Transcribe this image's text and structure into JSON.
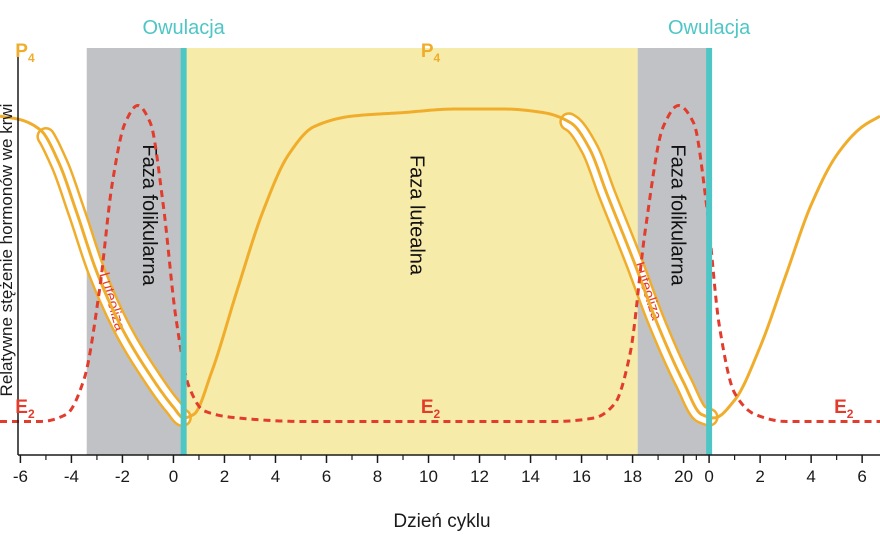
{
  "chart_data": {
    "type": "line",
    "xlabel": "Dzień cyklu",
    "ylabel": "Relatywne stężenie hormonów we krwi",
    "x_ticks": [
      "-6",
      "-4",
      "-2",
      "0",
      "2",
      "4",
      "6",
      "8",
      "10",
      "12",
      "14",
      "16",
      "18",
      "20",
      "0",
      "2",
      "4",
      "6"
    ],
    "x_tick_positions": [
      -6,
      -4,
      -2,
      0,
      2,
      4,
      6,
      8,
      10,
      12,
      14,
      16,
      18,
      20,
      21,
      23,
      25,
      27
    ],
    "xlim": [
      -6.8,
      27.7
    ],
    "ylim": [
      0,
      1
    ],
    "ovulation_label": "Owulacja",
    "ovulation_x": [
      0.4,
      21.0
    ],
    "regions": [
      {
        "label": "Faza folikularna",
        "from": -3.4,
        "to": 0.4,
        "color": "#c1c2c6"
      },
      {
        "label": "Faza lutealna",
        "from": 0.4,
        "to": 18.2,
        "color": "#f7eba9"
      },
      {
        "label": "Faza folikularna",
        "from": 18.2,
        "to": 21.0,
        "color": "#c1c2c6"
      }
    ],
    "luteolysis_label": "Luteoliza",
    "series": [
      {
        "name": "P",
        "sub": "4",
        "color": "#f0ad2c",
        "style": "solid",
        "points": [
          [
            -6.8,
            0.87
          ],
          [
            -6,
            0.86
          ],
          [
            -5.2,
            0.83
          ],
          [
            -4.5,
            0.74
          ],
          [
            -3.8,
            0.6
          ],
          [
            -3,
            0.43
          ],
          [
            -2,
            0.27
          ],
          [
            -1,
            0.15
          ],
          [
            0,
            0.05
          ],
          [
            0.4,
            0.02
          ],
          [
            0.8,
            0.03
          ],
          [
            1.5,
            0.15
          ],
          [
            2.5,
            0.38
          ],
          [
            3.5,
            0.6
          ],
          [
            4.5,
            0.76
          ],
          [
            5.5,
            0.84
          ],
          [
            7,
            0.87
          ],
          [
            9,
            0.88
          ],
          [
            11,
            0.89
          ],
          [
            13,
            0.89
          ],
          [
            14.5,
            0.88
          ],
          [
            15.6,
            0.85
          ],
          [
            16.3,
            0.78
          ],
          [
            17,
            0.65
          ],
          [
            18,
            0.47
          ],
          [
            19,
            0.28
          ],
          [
            20,
            0.12
          ],
          [
            20.7,
            0.03
          ],
          [
            21.2,
            0.02
          ],
          [
            22,
            0.07
          ],
          [
            23,
            0.22
          ],
          [
            24,
            0.42
          ],
          [
            25,
            0.62
          ],
          [
            26,
            0.76
          ],
          [
            27,
            0.84
          ],
          [
            27.7,
            0.87
          ]
        ]
      },
      {
        "name": "E",
        "sub": "2",
        "color": "#e23c2d",
        "style": "dashed",
        "points": [
          [
            -6.8,
            0.01
          ],
          [
            -5.2,
            0.01
          ],
          [
            -4.2,
            0.03
          ],
          [
            -3.5,
            0.13
          ],
          [
            -2.9,
            0.38
          ],
          [
            -2.4,
            0.68
          ],
          [
            -1.9,
            0.85
          ],
          [
            -1.4,
            0.9
          ],
          [
            -0.9,
            0.85
          ],
          [
            -0.4,
            0.62
          ],
          [
            0.1,
            0.3
          ],
          [
            0.6,
            0.11
          ],
          [
            1.2,
            0.04
          ],
          [
            2.5,
            0.02
          ],
          [
            5,
            0.01
          ],
          [
            10,
            0.01
          ],
          [
            15,
            0.01
          ],
          [
            16.5,
            0.02
          ],
          [
            17.3,
            0.06
          ],
          [
            17.9,
            0.2
          ],
          [
            18.5,
            0.55
          ],
          [
            19.2,
            0.84
          ],
          [
            19.8,
            0.9
          ],
          [
            20.4,
            0.85
          ],
          [
            20.9,
            0.62
          ],
          [
            21.4,
            0.28
          ],
          [
            22,
            0.09
          ],
          [
            22.8,
            0.03
          ],
          [
            24,
            0.01
          ],
          [
            27.7,
            0.01
          ]
        ]
      }
    ],
    "luteolysis_bands": [
      {
        "start": -5,
        "end": 0.35
      },
      {
        "start": 15.5,
        "end": 21.0
      }
    ],
    "series_labels": [
      {
        "series": 0,
        "x": -6.2,
        "y": 0.98
      },
      {
        "series": 0,
        "x": 9.7,
        "y": 0.98
      },
      {
        "series": 1,
        "x": -6.2,
        "y": 0.01
      },
      {
        "series": 1,
        "x": 9.7,
        "y": 0.01
      },
      {
        "series": 1,
        "x": 25.9,
        "y": 0.01
      }
    ]
  }
}
